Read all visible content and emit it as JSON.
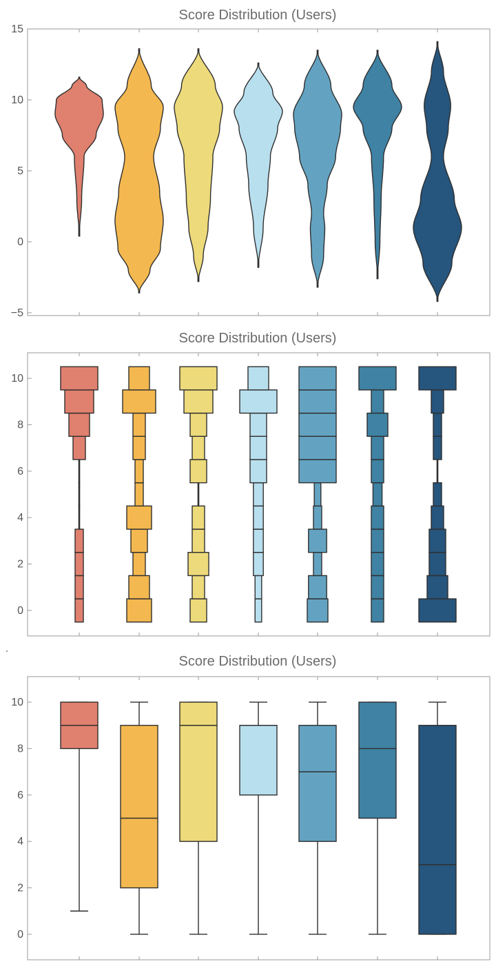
{
  "colors": [
    "#E0806E",
    "#F3B84F",
    "#EDDA7A",
    "#B8DFEE",
    "#63A3C1",
    "#3F82A3",
    "#26557D"
  ],
  "chart_data": [
    {
      "type": "violin",
      "title": "Score Distribution (Users)",
      "xlabel": "",
      "ylabel": "",
      "ylim": [
        -5.2,
        15
      ],
      "yticks": [
        "15",
        "10",
        "5",
        "0",
        "−5"
      ],
      "ytick_values": [
        15,
        10,
        5,
        0,
        -5
      ],
      "legend": "none",
      "grid": false,
      "series": [
        {
          "values": [
            [
              0.4,
              0.0
            ],
            [
              3,
              0.1
            ],
            [
              6,
              0.2
            ],
            [
              7.5,
              0.7
            ],
            [
              9,
              1.0
            ],
            [
              10,
              0.95
            ],
            [
              11,
              0.3
            ],
            [
              11.6,
              0.0
            ]
          ]
        },
        {
          "values": [
            [
              -3.6,
              0.0
            ],
            [
              -2,
              0.45
            ],
            [
              -0.5,
              0.88
            ],
            [
              1.5,
              1.0
            ],
            [
              3.5,
              0.85
            ],
            [
              6,
              0.6
            ],
            [
              8,
              0.88
            ],
            [
              9.5,
              1.0
            ],
            [
              11,
              0.5
            ],
            [
              13.6,
              0.0
            ]
          ]
        },
        {
          "values": [
            [
              -2.8,
              0.0
            ],
            [
              -1,
              0.2
            ],
            [
              1,
              0.4
            ],
            [
              3,
              0.5
            ],
            [
              6,
              0.6
            ],
            [
              8,
              0.88
            ],
            [
              9.5,
              1.0
            ],
            [
              11,
              0.7
            ],
            [
              13.6,
              0.0
            ]
          ]
        },
        {
          "values": [
            [
              -1.8,
              0.0
            ],
            [
              1,
              0.2
            ],
            [
              4,
              0.4
            ],
            [
              6,
              0.5
            ],
            [
              8,
              0.8
            ],
            [
              9.2,
              1.0
            ],
            [
              10.5,
              0.6
            ],
            [
              12.6,
              0.0
            ]
          ]
        },
        {
          "values": [
            [
              -3.2,
              0.0
            ],
            [
              -1,
              0.25
            ],
            [
              1,
              0.3
            ],
            [
              2,
              0.25
            ],
            [
              4,
              0.4
            ],
            [
              6,
              0.75
            ],
            [
              8,
              0.95
            ],
            [
              9,
              1.0
            ],
            [
              11,
              0.55
            ],
            [
              13.5,
              0.0
            ]
          ]
        },
        {
          "values": [
            [
              -2.6,
              0.0
            ],
            [
              0,
              0.1
            ],
            [
              3,
              0.15
            ],
            [
              6,
              0.25
            ],
            [
              8,
              0.6
            ],
            [
              9.5,
              1.0
            ],
            [
              11,
              0.6
            ],
            [
              13.5,
              0.0
            ]
          ]
        },
        {
          "values": [
            [
              -4.2,
              0.0
            ],
            [
              -1.5,
              0.6
            ],
            [
              1,
              1.0
            ],
            [
              3,
              0.7
            ],
            [
              6,
              0.25
            ],
            [
              8,
              0.45
            ],
            [
              9.6,
              0.55
            ],
            [
              12,
              0.25
            ],
            [
              14.1,
              0.0
            ]
          ]
        }
      ]
    },
    {
      "type": "histogram",
      "title": "Score Distribution (Users)",
      "xlabel": "",
      "ylabel": "",
      "ylim": [
        -1.1,
        11.1
      ],
      "yticks": [
        "10",
        "8",
        "6",
        "4",
        "2",
        "0"
      ],
      "ytick_values": [
        10,
        8,
        6,
        4,
        2,
        0
      ],
      "bins": [
        0,
        1,
        2,
        3,
        4,
        5,
        6,
        7,
        8,
        9,
        10
      ],
      "legend": "none",
      "grid": false,
      "series": [
        {
          "values": [
            1,
            1,
            1,
            1,
            0.1,
            0.1,
            0.1,
            1.5,
            2.5,
            3.5,
            4.5
          ]
        },
        {
          "values": [
            3,
            2.5,
            1.5,
            2,
            3,
            1,
            1,
            1.5,
            1.5,
            4,
            2.5
          ]
        },
        {
          "values": [
            2,
            1.5,
            2.5,
            1.5,
            1.5,
            0.1,
            2,
            1.5,
            2,
            3.5,
            4.5
          ]
        },
        {
          "values": [
            0.8,
            0.8,
            1.2,
            1.2,
            1.2,
            1.2,
            2,
            2,
            2,
            4.5,
            2.5
          ]
        },
        {
          "values": [
            2.5,
            2.2,
            1,
            2.2,
            1,
            0.8,
            4.5,
            4.5,
            4.5,
            4.5,
            4.5
          ]
        },
        {
          "values": [
            1.5,
            1.5,
            1.5,
            1.5,
            1.5,
            1.1,
            1.5,
            1.5,
            2.5,
            1.5,
            4.5
          ]
        },
        {
          "values": [
            4.5,
            2.5,
            2,
            2,
            1.5,
            1,
            0.1,
            1,
            1,
            1.5,
            4.5
          ]
        }
      ]
    },
    {
      "type": "box",
      "title": "Score Distribution (Users)",
      "xlabel": "",
      "ylabel": "",
      "ylim": [
        -1.1,
        11.1
      ],
      "yticks": [
        "10",
        "8",
        "6",
        "4",
        "2",
        "0"
      ],
      "ytick_values": [
        10,
        8,
        6,
        4,
        2,
        0
      ],
      "legend": "none",
      "grid": false,
      "series": [
        {
          "min": 1,
          "q1": 8,
          "median": 9,
          "q3": 10,
          "max": 10
        },
        {
          "min": 0,
          "q1": 2,
          "median": 5,
          "q3": 9,
          "max": 10
        },
        {
          "min": 0,
          "q1": 4,
          "median": 9,
          "q3": 10,
          "max": 10
        },
        {
          "min": 0,
          "q1": 6,
          "median": 9,
          "q3": 9,
          "max": 10
        },
        {
          "min": 0,
          "q1": 4,
          "median": 7,
          "q3": 9,
          "max": 10
        },
        {
          "min": 0,
          "q1": 5,
          "median": 8,
          "q3": 10,
          "max": 10
        },
        {
          "min": 0,
          "q1": 0,
          "median": 3,
          "q3": 9,
          "max": 10
        }
      ]
    }
  ]
}
